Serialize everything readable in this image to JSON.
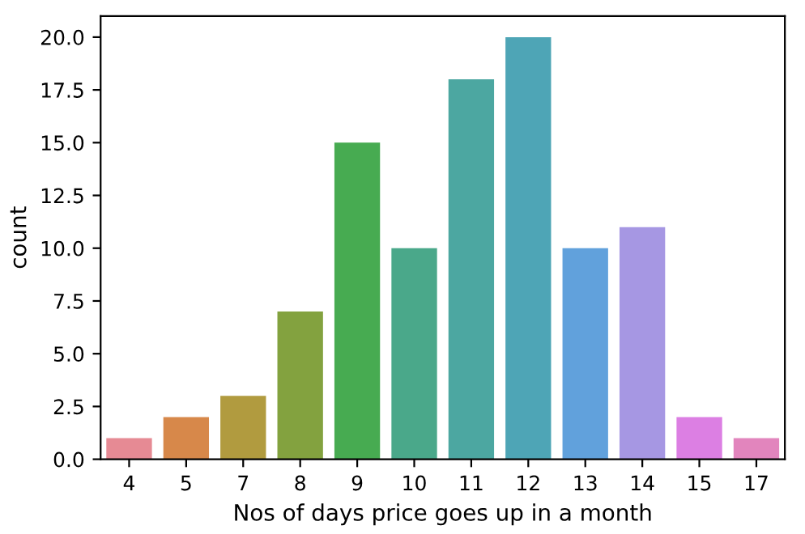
{
  "chart_data": {
    "type": "bar",
    "xlabel": "Nos of days price goes up in a month",
    "ylabel": "count",
    "categories": [
      "4",
      "5",
      "7",
      "8",
      "9",
      "10",
      "11",
      "12",
      "13",
      "14",
      "15",
      "17"
    ],
    "values": [
      1,
      2,
      3,
      7,
      15,
      10,
      18,
      20,
      10,
      11,
      2,
      1
    ],
    "colors": [
      "#e68a94",
      "#d7884a",
      "#b19b3f",
      "#83a23f",
      "#47ab51",
      "#4aa88a",
      "#4ca7a1",
      "#4ea5b6",
      "#61a1dc",
      "#a697e3",
      "#dc7fe3",
      "#e285bd"
    ],
    "ylim": [
      0,
      21
    ],
    "yticks": [
      {
        "value": 0,
        "label": "0.0"
      },
      {
        "value": 2.5,
        "label": "2.5"
      },
      {
        "value": 5,
        "label": "5.0"
      },
      {
        "value": 7.5,
        "label": "7.5"
      },
      {
        "value": 10,
        "label": "10.0"
      },
      {
        "value": 12.5,
        "label": "12.5"
      },
      {
        "value": 15,
        "label": "15.0"
      },
      {
        "value": 17.5,
        "label": "17.5"
      },
      {
        "value": 20,
        "label": "20.0"
      }
    ],
    "grid": false,
    "legend": false
  }
}
